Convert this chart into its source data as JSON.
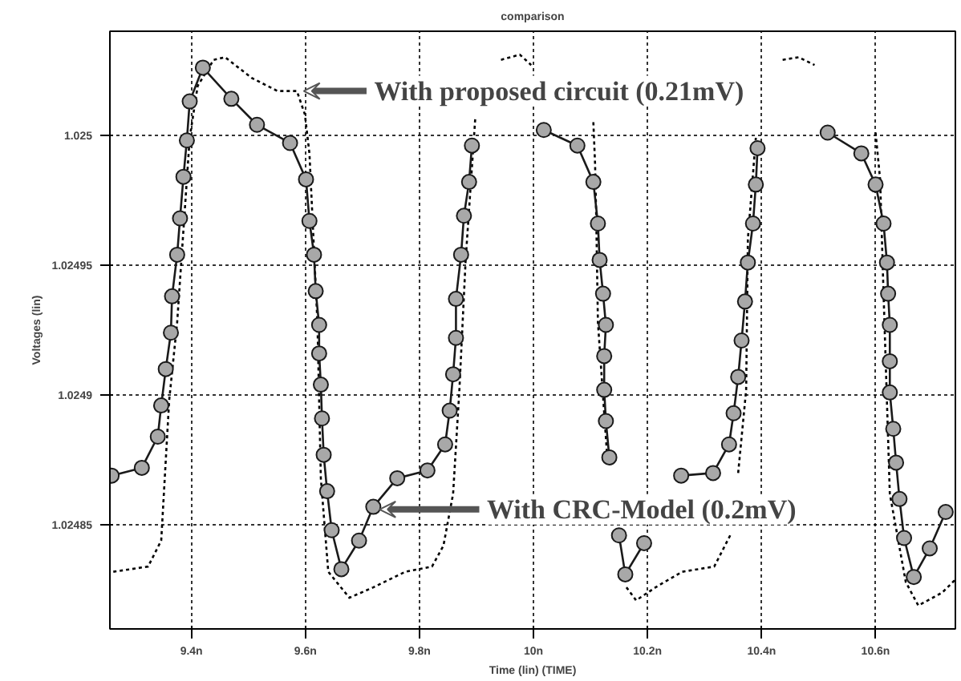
{
  "chart_data": {
    "type": "line",
    "title": "comparison",
    "xlabel": "Time (lin) (TIME)",
    "ylabel": "Voltages (lin)",
    "xlim": [
      9.257,
      10.74
    ],
    "ylim": [
      1.02481,
      1.02504
    ],
    "xticks": [
      {
        "value": 9.4,
        "label": "9.4n"
      },
      {
        "value": 9.6,
        "label": "9.6n"
      },
      {
        "value": 9.8,
        "label": "9.8n"
      },
      {
        "value": 10.0,
        "label": "10n"
      },
      {
        "value": 10.2,
        "label": "10.2n"
      },
      {
        "value": 10.4,
        "label": "10.4n"
      },
      {
        "value": 10.6,
        "label": "10.6n"
      }
    ],
    "yticks": [
      1.02485,
      1.0249,
      1.02495,
      1.025
    ],
    "grid": true,
    "series": [
      {
        "color": "#000000",
        "marker": "none",
        "line_style": "dotted",
        "x": [
          9.263,
          9.324,
          9.347,
          9.361,
          9.375,
          9.397,
          9.411,
          9.439,
          9.459,
          9.506,
          9.551,
          9.585,
          9.599,
          9.607,
          9.621,
          9.627,
          9.64,
          9.677,
          9.719,
          9.775,
          9.822,
          9.842,
          9.859,
          9.87,
          9.881,
          9.898,
          9.92,
          9.943,
          9.976,
          9.996,
          10.05,
          10.105,
          10.108,
          10.11,
          10.113,
          10.13,
          10.15,
          10.163,
          10.18,
          10.214,
          10.261,
          10.317,
          10.345,
          10.352,
          10.359,
          10.373,
          10.376,
          10.39,
          10.41,
          10.437,
          10.465,
          10.493,
          10.55,
          10.6,
          10.608,
          10.614,
          10.625,
          10.653,
          10.675,
          10.717,
          10.74
        ],
        "values": [
          1.024832,
          1.024834,
          1.024844,
          1.024898,
          1.024928,
          1.024999,
          1.025019,
          1.025029,
          1.02503,
          1.025022,
          1.025017,
          1.025017,
          1.025008,
          1.024993,
          1.024928,
          1.024868,
          1.024832,
          1.024822,
          1.024826,
          1.024832,
          1.024834,
          1.024842,
          1.024862,
          1.024902,
          1.024952,
          1.025007,
          null,
          1.025029,
          1.025031,
          1.025027,
          null,
          1.025005,
          1.024989,
          1.024969,
          1.024928,
          1.024874,
          null,
          1.024826,
          1.024821,
          1.024826,
          1.024832,
          1.024834,
          1.024846,
          null,
          1.02487,
          1.024902,
          1.02496,
          1.024999,
          null,
          1.025029,
          1.02503,
          1.025027,
          null,
          1.025001,
          1.024983,
          1.024939,
          1.024862,
          1.024828,
          1.024819,
          1.024824,
          1.024829
        ]
      },
      {
        "color": "#1a1a1a",
        "marker": "circle",
        "line_style": "solid",
        "x": [
          9.26,
          9.313,
          9.341,
          9.347,
          9.355,
          9.364,
          9.366,
          9.375,
          9.38,
          9.386,
          9.392,
          9.397,
          9.42,
          9.47,
          9.515,
          9.573,
          9.601,
          9.607,
          9.615,
          9.618,
          9.624,
          9.624,
          9.627,
          9.629,
          9.632,
          9.638,
          9.646,
          9.663,
          9.694,
          9.719,
          9.761,
          9.814,
          9.845,
          9.853,
          9.859,
          9.864,
          9.864,
          9.873,
          9.878,
          9.887,
          9.892,
          9.95,
          10.018,
          10.077,
          10.105,
          10.113,
          10.116,
          10.122,
          10.127,
          10.124,
          10.124,
          10.127,
          10.133,
          10.14,
          10.15,
          10.161,
          10.194,
          10.22,
          10.259,
          10.315,
          10.343,
          10.351,
          10.359,
          10.365,
          10.371,
          10.376,
          10.385,
          10.39,
          10.393,
          10.45,
          10.516,
          10.575,
          10.6,
          10.614,
          10.62,
          10.622,
          10.625,
          10.625,
          10.625,
          10.631,
          10.636,
          10.642,
          10.65,
          10.667,
          10.695,
          10.723
        ],
        "values": [
          1.024869,
          1.024872,
          1.024884,
          1.024896,
          1.02491,
          1.024924,
          1.024938,
          1.024954,
          1.024968,
          1.024984,
          1.024998,
          1.025013,
          1.025026,
          1.025014,
          1.025004,
          1.024997,
          1.024983,
          1.024967,
          1.024954,
          1.02494,
          1.024927,
          1.024916,
          1.024904,
          1.024891,
          1.024877,
          1.024863,
          1.024848,
          1.024833,
          1.024844,
          1.024857,
          1.024868,
          1.024871,
          1.024881,
          1.024894,
          1.024908,
          1.024922,
          1.024937,
          1.024954,
          1.024969,
          1.024982,
          1.024996,
          null,
          1.025002,
          1.024996,
          1.024982,
          1.024966,
          1.024952,
          1.024939,
          1.024927,
          1.024915,
          1.024902,
          1.02489,
          1.024876,
          null,
          1.024846,
          1.024831,
          1.024843,
          null,
          1.024869,
          1.02487,
          1.024881,
          1.024893,
          1.024907,
          1.024921,
          1.024936,
          1.024951,
          1.024966,
          1.024981,
          1.024995,
          null,
          1.025001,
          1.024993,
          1.024981,
          1.024966,
          1.024951,
          1.024939,
          1.024927,
          1.024913,
          1.024901,
          1.024887,
          1.024874,
          1.02486,
          1.024845,
          1.02483,
          1.024841,
          1.024855
        ]
      }
    ],
    "annotations": [
      {
        "text": "With proposed circuit (0.21mV)",
        "x": 9.591,
        "y": 1.025017
      },
      {
        "text": "With CRC-Model (0.2mV)",
        "x": 9.724,
        "y": 1.024856
      }
    ]
  }
}
